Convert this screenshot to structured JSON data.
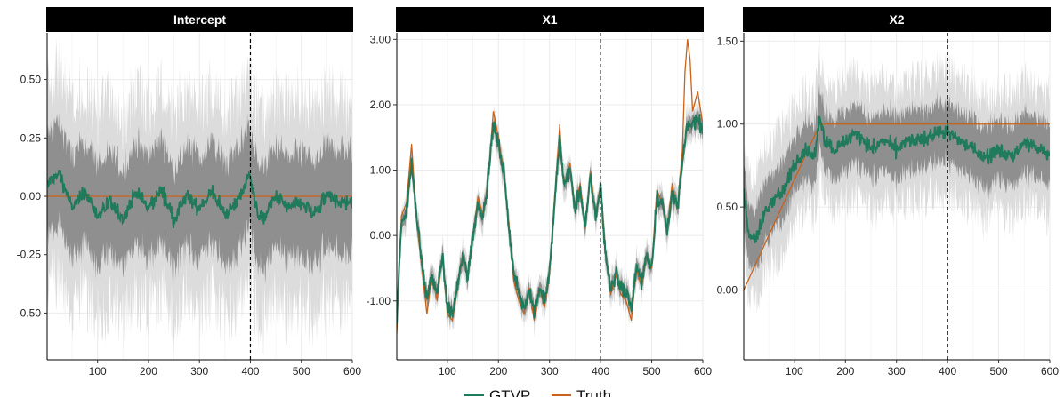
{
  "chart_data": {
    "type": "line",
    "x_range": [
      1,
      600
    ],
    "vline_x": 400,
    "colors": {
      "gtvp": "#207A5C",
      "truth": "#C9621A",
      "outer_band": "#DCDCDC",
      "inner_band": "#8F8F8F",
      "strip": "#000000"
    },
    "legend": [
      "GTVP",
      "Truth"
    ],
    "x_ticks": [
      "100",
      "200",
      "300",
      "400",
      "500",
      "600"
    ],
    "panels": [
      {
        "title": "Intercept",
        "ylim": [
          -0.7,
          0.7
        ],
        "y_ticks": [
          -0.5,
          -0.25,
          0.0,
          0.25,
          0.5
        ],
        "y_tick_labels": [
          "-0.50",
          "-0.25",
          "0.00",
          "0.25",
          "0.50"
        ],
        "truth": [
          [
            1,
            0.0
          ],
          [
            600,
            0.0
          ]
        ],
        "gtvp": [
          [
            1,
            0.05
          ],
          [
            25,
            0.1
          ],
          [
            50,
            -0.05
          ],
          [
            75,
            0.02
          ],
          [
            100,
            -0.08
          ],
          [
            125,
            -0.03
          ],
          [
            150,
            -0.1
          ],
          [
            175,
            0.02
          ],
          [
            200,
            -0.05
          ],
          [
            225,
            0.03
          ],
          [
            250,
            -0.1
          ],
          [
            275,
            0.0
          ],
          [
            300,
            -0.05
          ],
          [
            325,
            0.02
          ],
          [
            350,
            -0.08
          ],
          [
            375,
            -0.02
          ],
          [
            400,
            0.1
          ],
          [
            410,
            -0.05
          ],
          [
            425,
            -0.1
          ],
          [
            450,
            0.0
          ],
          [
            475,
            -0.05
          ],
          [
            500,
            -0.03
          ],
          [
            525,
            -0.08
          ],
          [
            550,
            0.0
          ],
          [
            575,
            -0.02
          ],
          [
            600,
            -0.03
          ]
        ],
        "inner_halfwidth": 0.22,
        "outer_halfwidth": 0.42
      },
      {
        "title": "X1",
        "ylim": [
          -1.9,
          3.1
        ],
        "y_ticks": [
          -1.0,
          0.0,
          1.0,
          2.0,
          3.0
        ],
        "y_tick_labels": [
          "-1.00",
          "0.00",
          "1.00",
          "2.00",
          "3.00"
        ],
        "truth": [
          [
            1,
            -1.5
          ],
          [
            10,
            0.3
          ],
          [
            20,
            0.5
          ],
          [
            30,
            1.4
          ],
          [
            40,
            0.2
          ],
          [
            50,
            -0.5
          ],
          [
            60,
            -1.2
          ],
          [
            70,
            -0.6
          ],
          [
            80,
            -1.0
          ],
          [
            90,
            -0.3
          ],
          [
            100,
            -1.2
          ],
          [
            110,
            -1.3
          ],
          [
            120,
            -0.8
          ],
          [
            130,
            -0.3
          ],
          [
            140,
            -0.6
          ],
          [
            150,
            0.0
          ],
          [
            160,
            0.6
          ],
          [
            170,
            0.3
          ],
          [
            180,
            0.9
          ],
          [
            190,
            1.9
          ],
          [
            200,
            1.5
          ],
          [
            210,
            1.0
          ],
          [
            220,
            0.2
          ],
          [
            230,
            -0.7
          ],
          [
            240,
            -1.0
          ],
          [
            250,
            -1.2
          ],
          [
            260,
            -0.8
          ],
          [
            270,
            -1.3
          ],
          [
            280,
            -0.8
          ],
          [
            290,
            -1.1
          ],
          [
            300,
            -0.6
          ],
          [
            310,
            0.6
          ],
          [
            320,
            1.7
          ],
          [
            325,
            1.0
          ],
          [
            330,
            0.8
          ],
          [
            340,
            1.1
          ],
          [
            350,
            0.4
          ],
          [
            360,
            0.8
          ],
          [
            370,
            0.1
          ],
          [
            380,
            1.0
          ],
          [
            390,
            0.3
          ],
          [
            400,
            0.8
          ],
          [
            410,
            -0.3
          ],
          [
            420,
            -0.9
          ],
          [
            430,
            -0.6
          ],
          [
            440,
            -0.9
          ],
          [
            450,
            -1.0
          ],
          [
            460,
            -1.3
          ],
          [
            470,
            -0.5
          ],
          [
            480,
            -0.8
          ],
          [
            490,
            -0.3
          ],
          [
            500,
            -0.5
          ],
          [
            510,
            0.7
          ],
          [
            520,
            0.5
          ],
          [
            530,
            0.1
          ],
          [
            540,
            0.8
          ],
          [
            550,
            0.4
          ],
          [
            560,
            1.3
          ],
          [
            565,
            2.5
          ],
          [
            570,
            3.0
          ],
          [
            575,
            2.7
          ],
          [
            580,
            1.9
          ],
          [
            590,
            2.2
          ],
          [
            600,
            1.7
          ]
        ],
        "gtvp": [
          [
            1,
            -1.3
          ],
          [
            10,
            0.2
          ],
          [
            20,
            0.4
          ],
          [
            30,
            1.1
          ],
          [
            40,
            0.3
          ],
          [
            50,
            -0.4
          ],
          [
            60,
            -1.0
          ],
          [
            70,
            -0.6
          ],
          [
            80,
            -0.9
          ],
          [
            90,
            -0.3
          ],
          [
            100,
            -1.1
          ],
          [
            110,
            -1.2
          ],
          [
            120,
            -0.8
          ],
          [
            130,
            -0.3
          ],
          [
            140,
            -0.6
          ],
          [
            150,
            0.0
          ],
          [
            160,
            0.5
          ],
          [
            170,
            0.3
          ],
          [
            180,
            0.9
          ],
          [
            190,
            1.7
          ],
          [
            200,
            1.4
          ],
          [
            210,
            1.0
          ],
          [
            220,
            0.2
          ],
          [
            230,
            -0.6
          ],
          [
            240,
            -0.9
          ],
          [
            250,
            -1.1
          ],
          [
            260,
            -0.8
          ],
          [
            270,
            -1.2
          ],
          [
            280,
            -0.8
          ],
          [
            290,
            -1.0
          ],
          [
            300,
            -0.6
          ],
          [
            310,
            0.5
          ],
          [
            320,
            1.5
          ],
          [
            325,
            1.0
          ],
          [
            330,
            0.8
          ],
          [
            340,
            1.0
          ],
          [
            350,
            0.4
          ],
          [
            360,
            0.7
          ],
          [
            370,
            0.1
          ],
          [
            380,
            0.9
          ],
          [
            390,
            0.3
          ],
          [
            400,
            0.7
          ],
          [
            410,
            -0.3
          ],
          [
            420,
            -0.8
          ],
          [
            430,
            -0.6
          ],
          [
            440,
            -0.8
          ],
          [
            450,
            -0.9
          ],
          [
            460,
            -1.1
          ],
          [
            470,
            -0.5
          ],
          [
            480,
            -0.7
          ],
          [
            490,
            -0.3
          ],
          [
            500,
            -0.5
          ],
          [
            510,
            0.6
          ],
          [
            520,
            0.5
          ],
          [
            530,
            0.1
          ],
          [
            540,
            0.7
          ],
          [
            550,
            0.4
          ],
          [
            560,
            1.1
          ],
          [
            570,
            1.7
          ],
          [
            580,
            1.7
          ],
          [
            590,
            1.8
          ],
          [
            600,
            1.6
          ]
        ],
        "inner_halfwidth": 0.12,
        "outer_halfwidth": 0.22
      },
      {
        "title": "X2",
        "ylim": [
          -0.42,
          1.55
        ],
        "y_ticks": [
          0.0,
          0.5,
          1.0,
          1.5
        ],
        "y_tick_labels": [
          "0.00",
          "0.50",
          "1.00",
          "1.50"
        ],
        "truth": [
          [
            1,
            0.0
          ],
          [
            150,
            1.0
          ],
          [
            600,
            1.0
          ]
        ],
        "gtvp": [
          [
            1,
            0.6
          ],
          [
            10,
            0.35
          ],
          [
            25,
            0.3
          ],
          [
            40,
            0.45
          ],
          [
            60,
            0.55
          ],
          [
            80,
            0.6
          ],
          [
            100,
            0.75
          ],
          [
            120,
            0.85
          ],
          [
            140,
            0.8
          ],
          [
            150,
            1.05
          ],
          [
            160,
            0.9
          ],
          [
            180,
            0.85
          ],
          [
            200,
            0.9
          ],
          [
            225,
            0.95
          ],
          [
            250,
            0.85
          ],
          [
            275,
            0.9
          ],
          [
            300,
            0.85
          ],
          [
            325,
            0.9
          ],
          [
            350,
            0.9
          ],
          [
            375,
            0.95
          ],
          [
            400,
            0.95
          ],
          [
            425,
            0.9
          ],
          [
            450,
            0.85
          ],
          [
            475,
            0.8
          ],
          [
            500,
            0.85
          ],
          [
            525,
            0.8
          ],
          [
            550,
            0.9
          ],
          [
            575,
            0.85
          ],
          [
            600,
            0.82
          ]
        ],
        "inner_halfwidth": 0.18,
        "outer_halfwidth": 0.35
      }
    ]
  }
}
